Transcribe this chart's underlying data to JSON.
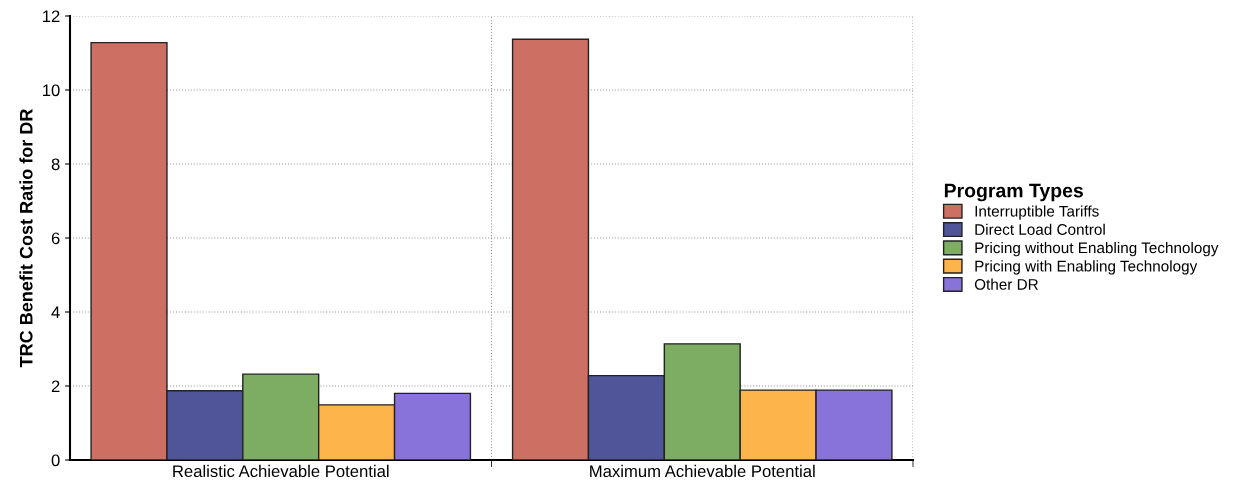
{
  "chart_data": {
    "type": "bar",
    "ylabel": "TRC Benefit Cost Ratio for DR",
    "legend_title": "Program Types",
    "categories": [
      "Realistic Achievable Potential",
      "Maximum Achievable Potential"
    ],
    "series": [
      {
        "name": "Interruptible Tariffs",
        "color": "#cd6f62",
        "values": [
          11.28,
          11.37
        ]
      },
      {
        "name": "Direct Load Control",
        "color": "#50559a",
        "values": [
          1.87,
          2.28
        ]
      },
      {
        "name": "Pricing without Enabling Technology",
        "color": "#7cad62",
        "values": [
          2.32,
          3.14
        ]
      },
      {
        "name": "Pricing with Enabling Technology",
        "color": "#fdb54b",
        "values": [
          1.49,
          1.89
        ]
      },
      {
        "name": "Other DR",
        "color": "#8873db",
        "values": [
          1.8,
          1.89
        ]
      }
    ],
    "ylim": [
      0,
      12
    ],
    "yticks": [
      0,
      2,
      4,
      6,
      8,
      10,
      12
    ],
    "grid": true,
    "legend": "right"
  }
}
